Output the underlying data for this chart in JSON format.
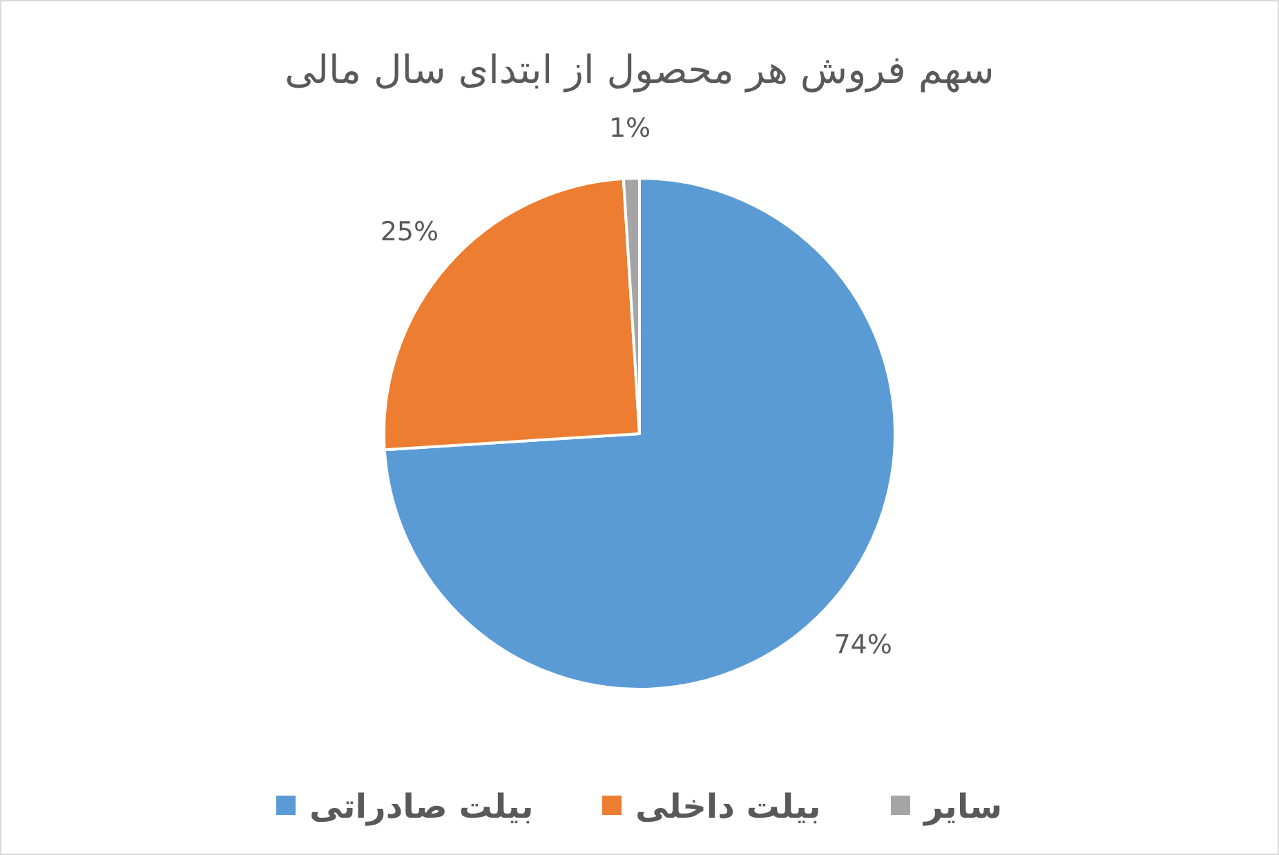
{
  "chart_data": {
    "type": "pie",
    "title": "سهم فروش  هر محصول از ابتدای سال مالی",
    "categories": [
      "بیلت صادراتی",
      "بیلت داخلی",
      "سایر"
    ],
    "values": [
      74,
      25,
      1
    ],
    "value_labels": [
      "74%",
      "25%",
      "1%"
    ],
    "colors": [
      "#5b9bd5",
      "#ed7d31",
      "#a5a5a5"
    ],
    "legend": "bottom"
  }
}
